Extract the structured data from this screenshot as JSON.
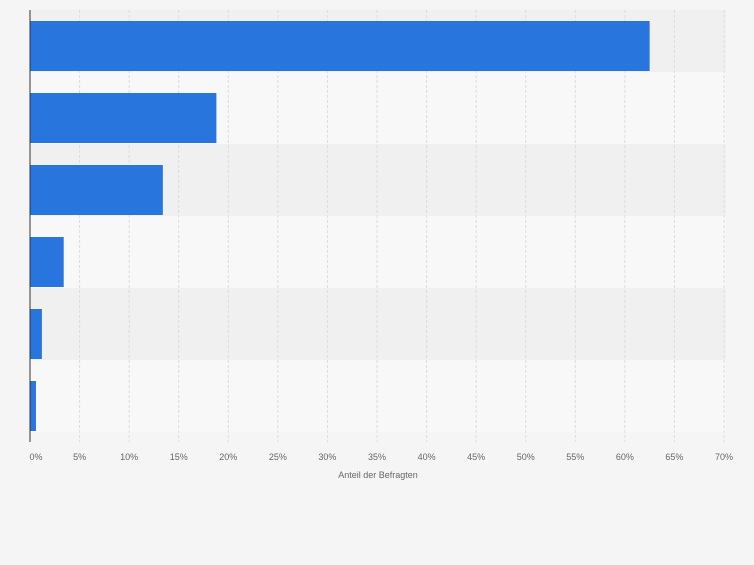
{
  "chart_data": {
    "type": "bar",
    "orientation": "horizontal",
    "categories": [
      "",
      "",
      "",
      "",
      "",
      ""
    ],
    "values": [
      62.5,
      18.8,
      13.4,
      3.4,
      1.2,
      0.6
    ],
    "unit": "%",
    "xlabel": "Anteil der Befragten",
    "ylabel": "",
    "title": "",
    "xlim": [
      0,
      70
    ],
    "x_ticks": [
      0,
      5,
      10,
      15,
      20,
      25,
      30,
      35,
      40,
      45,
      50,
      55,
      60,
      65,
      70
    ],
    "x_tick_labels": [
      "0%",
      "5%",
      "10%",
      "15%",
      "20%",
      "25%",
      "30%",
      "35%",
      "40%",
      "45%",
      "50%",
      "55%",
      "60%",
      "65%",
      "70%"
    ],
    "grid": true,
    "legend": "none",
    "colors": {
      "bar": "#2876dd",
      "band_dark": "#f0f0f0",
      "band_light": "#f8f8f8",
      "grid": "#dcdcdc",
      "axis": "#333333",
      "tick_text": "#666666",
      "background": "#f5f5f5"
    }
  }
}
